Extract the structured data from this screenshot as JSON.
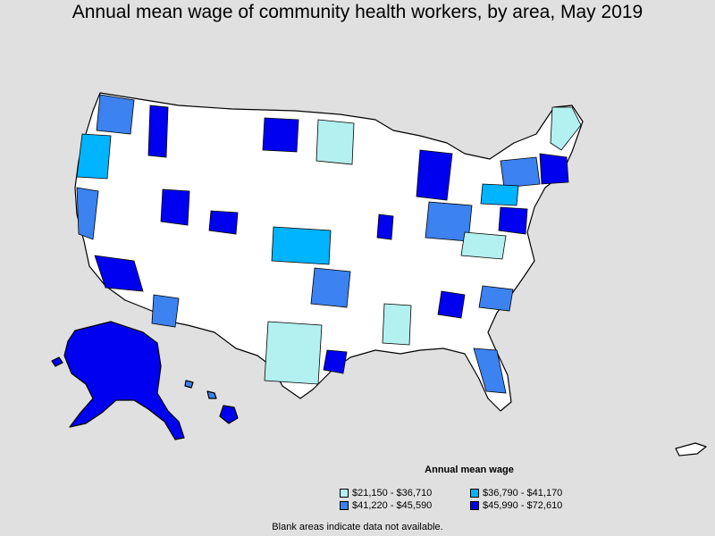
{
  "title": "Annual mean wage of community health workers, by area, May 2019",
  "legend": {
    "title": "Annual mean wage",
    "items": [
      {
        "label": "$21,150 - $36,710",
        "color": "#b3f0f0"
      },
      {
        "label": "$36,790 - $41,170",
        "color": "#00b4ff"
      },
      {
        "label": "$41,220 - $45,590",
        "color": "#3c82f0"
      },
      {
        "label": "$45,990 - $72,610",
        "color": "#0000f0"
      }
    ]
  },
  "footnote": "Blank areas indicate data not available.",
  "colors": {
    "background": "#e0e0e0",
    "no_data": "#ffffff",
    "border": "#000000"
  }
}
